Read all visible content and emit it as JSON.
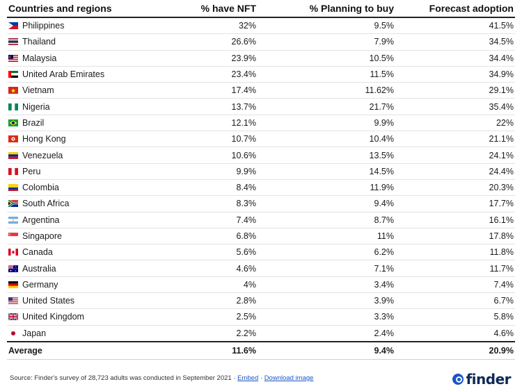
{
  "chart_data": {
    "type": "table",
    "columns": [
      "Countries and regions",
      "% have NFT",
      "% Planning to buy",
      "Forecast adoption"
    ],
    "rows": [
      {
        "country": "Philippines",
        "flag": "philippines-flag",
        "have_nft": "32%",
        "planning": "9.5%",
        "forecast": "41.5%"
      },
      {
        "country": "Thailand",
        "flag": "thailand-flag",
        "have_nft": "26.6%",
        "planning": "7.9%",
        "forecast": "34.5%"
      },
      {
        "country": "Malaysia",
        "flag": "malaysia-flag",
        "have_nft": "23.9%",
        "planning": "10.5%",
        "forecast": "34.4%"
      },
      {
        "country": "United Arab Emirates",
        "flag": "uae-flag",
        "have_nft": "23.4%",
        "planning": "11.5%",
        "forecast": "34.9%"
      },
      {
        "country": "Vietnam",
        "flag": "vietnam-flag",
        "have_nft": "17.4%",
        "planning": "11.62%",
        "forecast": "29.1%"
      },
      {
        "country": "Nigeria",
        "flag": "nigeria-flag",
        "have_nft": "13.7%",
        "planning": "21.7%",
        "forecast": "35.4%"
      },
      {
        "country": "Brazil",
        "flag": "brazil-flag",
        "have_nft": "12.1%",
        "planning": "9.9%",
        "forecast": "22%"
      },
      {
        "country": "Hong Kong",
        "flag": "hong-kong-flag",
        "have_nft": "10.7%",
        "planning": "10.4%",
        "forecast": "21.1%"
      },
      {
        "country": "Venezuela",
        "flag": "venezuela-flag",
        "have_nft": "10.6%",
        "planning": "13.5%",
        "forecast": "24.1%"
      },
      {
        "country": "Peru",
        "flag": "peru-flag",
        "have_nft": "9.9%",
        "planning": "14.5%",
        "forecast": "24.4%"
      },
      {
        "country": "Colombia",
        "flag": "colombia-flag",
        "have_nft": "8.4%",
        "planning": "11.9%",
        "forecast": "20.3%"
      },
      {
        "country": "South Africa",
        "flag": "south-africa-flag",
        "have_nft": "8.3%",
        "planning": "9.4%",
        "forecast": "17.7%"
      },
      {
        "country": "Argentina",
        "flag": "argentina-flag",
        "have_nft": "7.4%",
        "planning": "8.7%",
        "forecast": "16.1%"
      },
      {
        "country": "Singapore",
        "flag": "singapore-flag",
        "have_nft": "6.8%",
        "planning": "11%",
        "forecast": "17.8%"
      },
      {
        "country": "Canada",
        "flag": "canada-flag",
        "have_nft": "5.6%",
        "planning": "6.2%",
        "forecast": "11.8%"
      },
      {
        "country": "Australia",
        "flag": "australia-flag",
        "have_nft": "4.6%",
        "planning": "7.1%",
        "forecast": "11.7%"
      },
      {
        "country": "Germany",
        "flag": "germany-flag",
        "have_nft": "4%",
        "planning": "3.4%",
        "forecast": "7.4%"
      },
      {
        "country": "United States",
        "flag": "united-states-flag",
        "have_nft": "2.8%",
        "planning": "3.9%",
        "forecast": "6.7%"
      },
      {
        "country": "United Kingdom",
        "flag": "united-kingdom-flag",
        "have_nft": "2.5%",
        "planning": "3.3%",
        "forecast": "5.8%"
      },
      {
        "country": "Japan",
        "flag": "japan-flag",
        "have_nft": "2.2%",
        "planning": "2.4%",
        "forecast": "4.6%"
      }
    ],
    "average": {
      "label": "Average",
      "have_nft": "11.6%",
      "planning": "9.4%",
      "forecast": "20.9%"
    }
  },
  "footer": {
    "source_text": "Source: Finder's survey of 28,723 adults was conducted in September 2021 · ",
    "embed_label": "Embed",
    "separator": " · ",
    "download_label": "Download image"
  },
  "brand": {
    "name": "finder",
    "icon": "finder-logo-icon",
    "color": "#1a56c8"
  }
}
